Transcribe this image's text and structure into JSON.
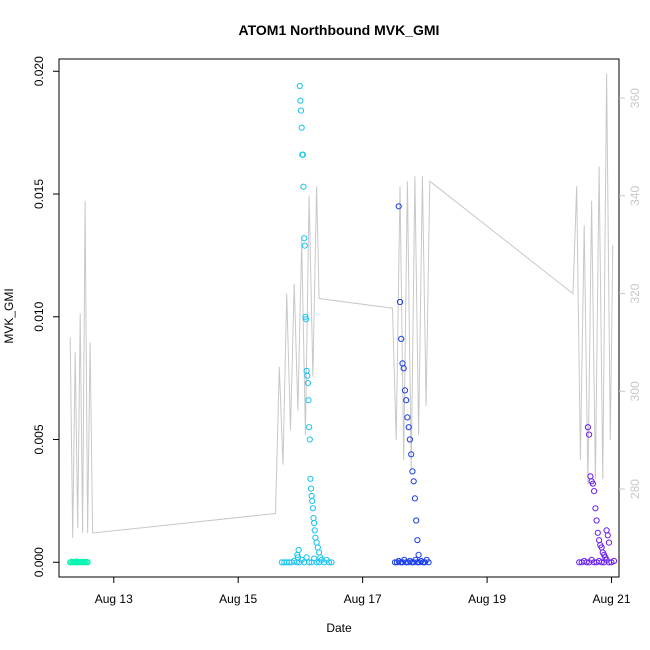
{
  "chart_data": {
    "type": "scatter",
    "title": "ATOM1 Northbound MVK_GMI",
    "xlabel": "Date",
    "ylabel": "MVK_GMI",
    "x_ticks": [
      "Aug 13",
      "Aug 15",
      "Aug 17",
      "Aug 19",
      "Aug 21"
    ],
    "x_tick_days": [
      13,
      15,
      17,
      19,
      21
    ],
    "xlim": [
      12.12,
      21.12
    ],
    "y_ticks": [
      "0.000",
      "0.005",
      "0.010",
      "0.015",
      "0.020"
    ],
    "y_tick_values": [
      0.0,
      0.005,
      0.01,
      0.015,
      0.02
    ],
    "ylim": [
      -0.0006,
      0.0205
    ],
    "y2_ticks": [
      "280",
      "300",
      "320",
      "340",
      "360"
    ],
    "y2_tick_values": [
      280,
      300,
      320,
      340,
      360
    ],
    "y2lim": [
      262,
      368
    ],
    "grid": false,
    "legend": "none",
    "colors": {
      "axis": "#000000",
      "secondary_line": "#c8c8c8",
      "secondary_axis": "#c8c8c8",
      "series1": "#00f5b0",
      "series2": "#17c3f0",
      "series3": "#1a3de8",
      "series4": "#6a1ef2"
    },
    "series": [
      {
        "color_key": "series1",
        "x": [
          12.3,
          12.32,
          12.34,
          12.36,
          12.38,
          12.4,
          12.42,
          12.44,
          12.46,
          12.48,
          12.5,
          12.52,
          12.54,
          12.56,
          12.58
        ],
        "y": [
          0,
          2e-05,
          0,
          1e-05,
          0,
          3e-05,
          0,
          1e-05,
          0,
          2e-05,
          0,
          1e-05,
          0,
          2e-05,
          0
        ]
      },
      {
        "color_key": "series2",
        "x": [
          15.7,
          15.74,
          15.78,
          15.82,
          15.86,
          15.9,
          15.94,
          15.98,
          16.02,
          16.06,
          16.1,
          16.14,
          16.18,
          16.22,
          16.26,
          16.3,
          16.34,
          16.38,
          16.42,
          16.46,
          16.5,
          15.95,
          15.96,
          15.97,
          15.99,
          16.0,
          16.01,
          16.02,
          16.03,
          16.04,
          16.05,
          16.06,
          16.07,
          16.08,
          16.09,
          16.1,
          16.11,
          16.12,
          16.13,
          16.14,
          16.15,
          16.16,
          16.17,
          16.18,
          16.19,
          16.2,
          16.21,
          16.22,
          16.23,
          16.24,
          16.26,
          16.28,
          16.3,
          16.32
        ],
        "y": [
          0,
          0,
          0,
          0,
          0,
          5e-05,
          0,
          0,
          0.0001,
          0,
          0.0002,
          0,
          0,
          0.00015,
          0,
          0,
          0.0001,
          0,
          0.0001,
          0,
          0,
          0.0003,
          0.0002,
          0.0005,
          0.0194,
          0.0188,
          0.0184,
          0.0177,
          0.0166,
          0.0166,
          0.0153,
          0.0132,
          0.0129,
          0.01,
          0.0099,
          0.0078,
          0.0076,
          0.0073,
          0.0066,
          0.0055,
          0.005,
          0.0034,
          0.003,
          0.0027,
          0.0025,
          0.0022,
          0.0018,
          0.0016,
          0.0013,
          0.001,
          0.0008,
          0.0006,
          0.0004,
          0.0002
        ]
      },
      {
        "color_key": "series3",
        "x": [
          17.52,
          17.55,
          17.58,
          17.61,
          17.64,
          17.67,
          17.7,
          17.73,
          17.76,
          17.79,
          17.82,
          17.85,
          17.88,
          17.91,
          17.94,
          17.97,
          18.0,
          18.03,
          18.06,
          17.58,
          17.6,
          17.62,
          17.64,
          17.66,
          17.68,
          17.7,
          17.72,
          17.74,
          17.76,
          17.78,
          17.8,
          17.82,
          17.84,
          17.86,
          17.88,
          17.9
        ],
        "y": [
          0,
          0,
          5e-05,
          0,
          0,
          0.0001,
          0,
          0,
          5e-05,
          0,
          0,
          0.0001,
          0,
          0,
          5e-05,
          0,
          0,
          0.0001,
          0,
          0.0145,
          0.0106,
          0.0091,
          0.0081,
          0.0079,
          0.007,
          0.0066,
          0.0059,
          0.0055,
          0.005,
          0.0044,
          0.0037,
          0.0033,
          0.0026,
          0.0017,
          0.0009,
          0.0003
        ]
      },
      {
        "color_key": "series4",
        "x": [
          20.48,
          20.52,
          20.56,
          20.6,
          20.64,
          20.68,
          20.72,
          20.76,
          20.8,
          20.84,
          20.88,
          20.92,
          20.96,
          21.0,
          21.04,
          20.62,
          20.64,
          20.66,
          20.68,
          20.7,
          20.72,
          20.74,
          20.76,
          20.78,
          20.8,
          20.82,
          20.84,
          20.86,
          20.88,
          20.9,
          20.92,
          20.94,
          20.96
        ],
        "y": [
          0,
          0,
          5e-05,
          0,
          0,
          0.0001,
          0,
          0,
          5e-05,
          0,
          0,
          0.0001,
          0,
          0,
          5e-05,
          0.0055,
          0.0052,
          0.0035,
          0.0033,
          0.0032,
          0.0029,
          0.0022,
          0.0017,
          0.0012,
          0.0009,
          0.0007,
          0.0006,
          0.0004,
          0.0003,
          0.0002,
          0.0013,
          0.0011,
          0.0008
        ]
      }
    ],
    "secondary_series": {
      "color_key": "secondary_line",
      "x": [
        12.3,
        12.34,
        12.38,
        12.42,
        12.46,
        12.5,
        12.54,
        12.58,
        12.62,
        12.66,
        15.6,
        15.66,
        15.72,
        15.78,
        15.84,
        15.9,
        15.96,
        16.02,
        16.08,
        16.14,
        16.2,
        16.26,
        16.3,
        17.48,
        17.54,
        17.6,
        17.66,
        17.72,
        17.78,
        17.84,
        17.9,
        17.96,
        18.02,
        18.08,
        20.38,
        20.44,
        20.5,
        20.56,
        20.62,
        20.68,
        20.74,
        20.8,
        20.86,
        20.92,
        20.98,
        21.02
      ],
      "y": [
        311,
        270,
        308,
        272,
        316,
        271,
        339,
        271,
        310,
        271,
        275,
        305,
        285,
        320,
        292,
        322,
        296,
        331,
        291,
        340,
        303,
        342,
        319,
        317,
        290,
        342,
        286,
        343,
        284,
        344,
        291,
        344,
        297,
        343,
        320,
        342,
        286,
        334,
        281,
        339,
        282,
        346,
        282,
        365,
        290,
        330
      ]
    }
  }
}
